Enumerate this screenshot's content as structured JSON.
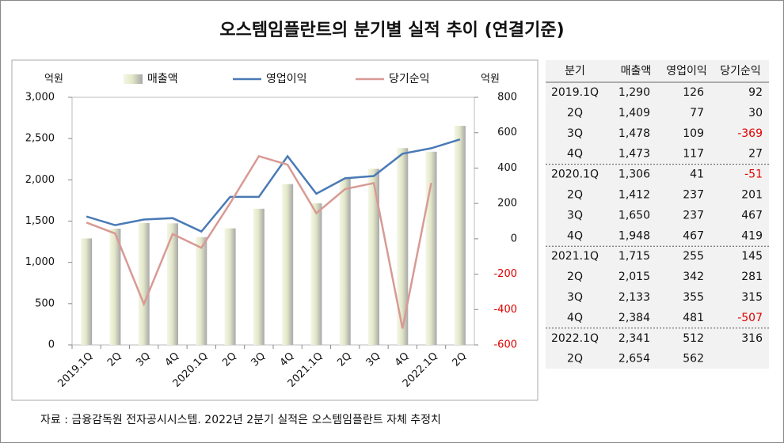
{
  "title": "오스템임플란트의 분기별 실적 추이 (연결기준)",
  "footer": "자료 : 금융감독원 전자공시시스템. 2022년 2분기 실적은 오스템임플란트 자체 추정치",
  "chart_data": {
    "type": "bar_line",
    "y_unit": "억원",
    "y2_unit": "억원",
    "categories": [
      "2019.1Q",
      "2Q",
      "3Q",
      "4Q",
      "2020.1Q",
      "2Q",
      "3Q",
      "4Q",
      "2021.1Q",
      "2Q",
      "3Q",
      "4Q",
      "2022.1Q",
      "2Q"
    ],
    "series": [
      {
        "name": "매출액",
        "type": "bar",
        "color": "#e3e8c8",
        "axis": "y",
        "values": [
          1290,
          1409,
          1478,
          1473,
          1306,
          1412,
          1650,
          1948,
          1715,
          2015,
          2133,
          2384,
          2341,
          2654
        ]
      },
      {
        "name": "영업이익",
        "type": "line",
        "color": "#4a7ab5",
        "axis": "y2",
        "values": [
          126,
          77,
          109,
          117,
          41,
          237,
          237,
          467,
          255,
          342,
          355,
          481,
          512,
          562
        ]
      },
      {
        "name": "당기순익",
        "type": "line",
        "color": "#d89a94",
        "axis": "y2",
        "values": [
          92,
          30,
          -369,
          27,
          -51,
          201,
          467,
          419,
          145,
          281,
          315,
          -507,
          316,
          null
        ]
      }
    ],
    "ylim": [
      0,
      3000
    ],
    "yticks": [
      0,
      500,
      {
        "value": 1000,
        "label": "1,000"
      },
      {
        "value": 1500,
        "label": "1,500"
      },
      {
        "value": 2000,
        "label": "2,000"
      },
      {
        "value": 2500,
        "label": "2,500"
      },
      {
        "value": 3000,
        "label": "3,000"
      }
    ],
    "y2lim": [
      -600,
      800
    ],
    "y2ticks": [
      -600,
      -400,
      -200,
      0,
      200,
      400,
      600,
      800
    ],
    "grid": false
  },
  "table": {
    "columns": [
      "분기",
      "매출액",
      "영업이익",
      "당기순익"
    ],
    "rows": [
      [
        "2019.1Q",
        "1,290",
        "126",
        "92"
      ],
      [
        "2Q",
        "1,409",
        "77",
        "30"
      ],
      [
        "3Q",
        "1,478",
        "109",
        "-369"
      ],
      [
        "4Q",
        "1,473",
        "117",
        "27"
      ],
      [
        "2020.1Q",
        "1,306",
        "41",
        "-51"
      ],
      [
        "2Q",
        "1,412",
        "237",
        "201"
      ],
      [
        "3Q",
        "1,650",
        "237",
        "467"
      ],
      [
        "4Q",
        "1,948",
        "467",
        "419"
      ],
      [
        "2021.1Q",
        "1,715",
        "255",
        "145"
      ],
      [
        "2Q",
        "2,015",
        "342",
        "281"
      ],
      [
        "3Q",
        "2,133",
        "355",
        "315"
      ],
      [
        "4Q",
        "2,384",
        "481",
        "-507"
      ],
      [
        "2022.1Q",
        "2,341",
        "512",
        "316"
      ],
      [
        "2Q",
        "2,654",
        "562",
        ""
      ]
    ]
  }
}
